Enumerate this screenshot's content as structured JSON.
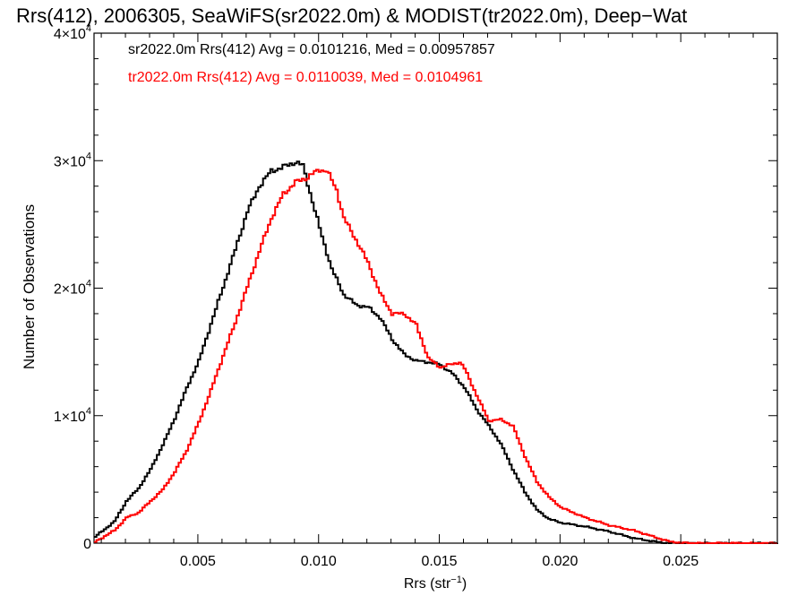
{
  "chart_data": {
    "type": "line",
    "title": "Rrs(412), 2006305, SeaWiFS(sr2022.0m) & MODIST(tr2022.0m), Deep−Wat",
    "xlabel_base": "Rrs (str",
    "xlabel_sup": "−1",
    "xlabel_close": ")",
    "ylabel": "Number of Observations",
    "xlim": [
      0.0007,
      0.029
    ],
    "ylim": [
      0,
      40000
    ],
    "x_ticks": [
      {
        "value": 0.005,
        "label": "0.005"
      },
      {
        "value": 0.01,
        "label": "0.010"
      },
      {
        "value": 0.015,
        "label": "0.015"
      },
      {
        "value": 0.02,
        "label": "0.020"
      },
      {
        "value": 0.025,
        "label": "0.025"
      }
    ],
    "y_ticks": [
      {
        "value": 0,
        "mant": "0",
        "exp": ""
      },
      {
        "value": 10000,
        "mant": "1×10",
        "exp": "4"
      },
      {
        "value": 20000,
        "mant": "2×10",
        "exp": "4"
      },
      {
        "value": 30000,
        "mant": "3×10",
        "exp": "4"
      },
      {
        "value": 40000,
        "mant": "4×10",
        "exp": "4"
      }
    ],
    "grid": false,
    "legend_position": "top-left",
    "series": [
      {
        "label": "sr2022.0m Rrs(412) Avg = 0.0101216, Med = 0.00957857",
        "color": "#000000",
        "points": [
          [
            0.0007,
            500
          ],
          [
            0.0015,
            1700
          ],
          [
            0.002,
            3300
          ],
          [
            0.0025,
            4300
          ],
          [
            0.003,
            5800
          ],
          [
            0.0035,
            7700
          ],
          [
            0.004,
            9800
          ],
          [
            0.0045,
            12200
          ],
          [
            0.005,
            14300
          ],
          [
            0.0055,
            17200
          ],
          [
            0.006,
            20100
          ],
          [
            0.0065,
            23000
          ],
          [
            0.007,
            26000
          ],
          [
            0.0075,
            28000
          ],
          [
            0.008,
            29200
          ],
          [
            0.0085,
            29500
          ],
          [
            0.009,
            29900
          ],
          [
            0.0093,
            29600
          ],
          [
            0.0096,
            27500
          ],
          [
            0.01,
            24700
          ],
          [
            0.0105,
            21500
          ],
          [
            0.011,
            19500
          ],
          [
            0.0115,
            18700
          ],
          [
            0.012,
            18500
          ],
          [
            0.0125,
            17700
          ],
          [
            0.013,
            16000
          ],
          [
            0.0135,
            14800
          ],
          [
            0.014,
            14300
          ],
          [
            0.0145,
            14200
          ],
          [
            0.015,
            14000
          ],
          [
            0.0155,
            13300
          ],
          [
            0.016,
            12200
          ],
          [
            0.0165,
            10500
          ],
          [
            0.017,
            9200
          ],
          [
            0.0175,
            7800
          ],
          [
            0.018,
            5800
          ],
          [
            0.0185,
            4000
          ],
          [
            0.019,
            2600
          ],
          [
            0.0195,
            1900
          ],
          [
            0.02,
            1600
          ],
          [
            0.021,
            1300
          ],
          [
            0.022,
            900
          ],
          [
            0.023,
            400
          ],
          [
            0.024,
            80
          ],
          [
            0.0245,
            0
          ],
          [
            0.029,
            0
          ]
        ]
      },
      {
        "label": "tr2022.0m Rrs(412) Avg = 0.0110039, Med = 0.0104961",
        "color": "#ff0000",
        "points": [
          [
            0.0007,
            100
          ],
          [
            0.0015,
            1000
          ],
          [
            0.002,
            2000
          ],
          [
            0.0025,
            2400
          ],
          [
            0.003,
            3300
          ],
          [
            0.0035,
            4200
          ],
          [
            0.004,
            5600
          ],
          [
            0.0045,
            7300
          ],
          [
            0.005,
            9500
          ],
          [
            0.0055,
            12000
          ],
          [
            0.006,
            14700
          ],
          [
            0.0065,
            17300
          ],
          [
            0.007,
            20100
          ],
          [
            0.0075,
            22900
          ],
          [
            0.008,
            25500
          ],
          [
            0.0085,
            27400
          ],
          [
            0.009,
            28300
          ],
          [
            0.0095,
            28700
          ],
          [
            0.01,
            29300
          ],
          [
            0.0103,
            29200
          ],
          [
            0.0107,
            27700
          ],
          [
            0.011,
            25500
          ],
          [
            0.0115,
            23800
          ],
          [
            0.012,
            22000
          ],
          [
            0.0125,
            19600
          ],
          [
            0.013,
            18000
          ],
          [
            0.0135,
            18000
          ],
          [
            0.014,
            17100
          ],
          [
            0.0145,
            14500
          ],
          [
            0.015,
            13800
          ],
          [
            0.0158,
            14200
          ],
          [
            0.016,
            13700
          ],
          [
            0.0165,
            11600
          ],
          [
            0.017,
            9600
          ],
          [
            0.0175,
            9700
          ],
          [
            0.018,
            9200
          ],
          [
            0.0185,
            6800
          ],
          [
            0.019,
            4800
          ],
          [
            0.0195,
            3600
          ],
          [
            0.02,
            2800
          ],
          [
            0.021,
            2000
          ],
          [
            0.022,
            1400
          ],
          [
            0.023,
            1000
          ],
          [
            0.024,
            400
          ],
          [
            0.0245,
            120
          ],
          [
            0.025,
            30
          ],
          [
            0.0255,
            0
          ],
          [
            0.029,
            0
          ]
        ]
      }
    ]
  }
}
